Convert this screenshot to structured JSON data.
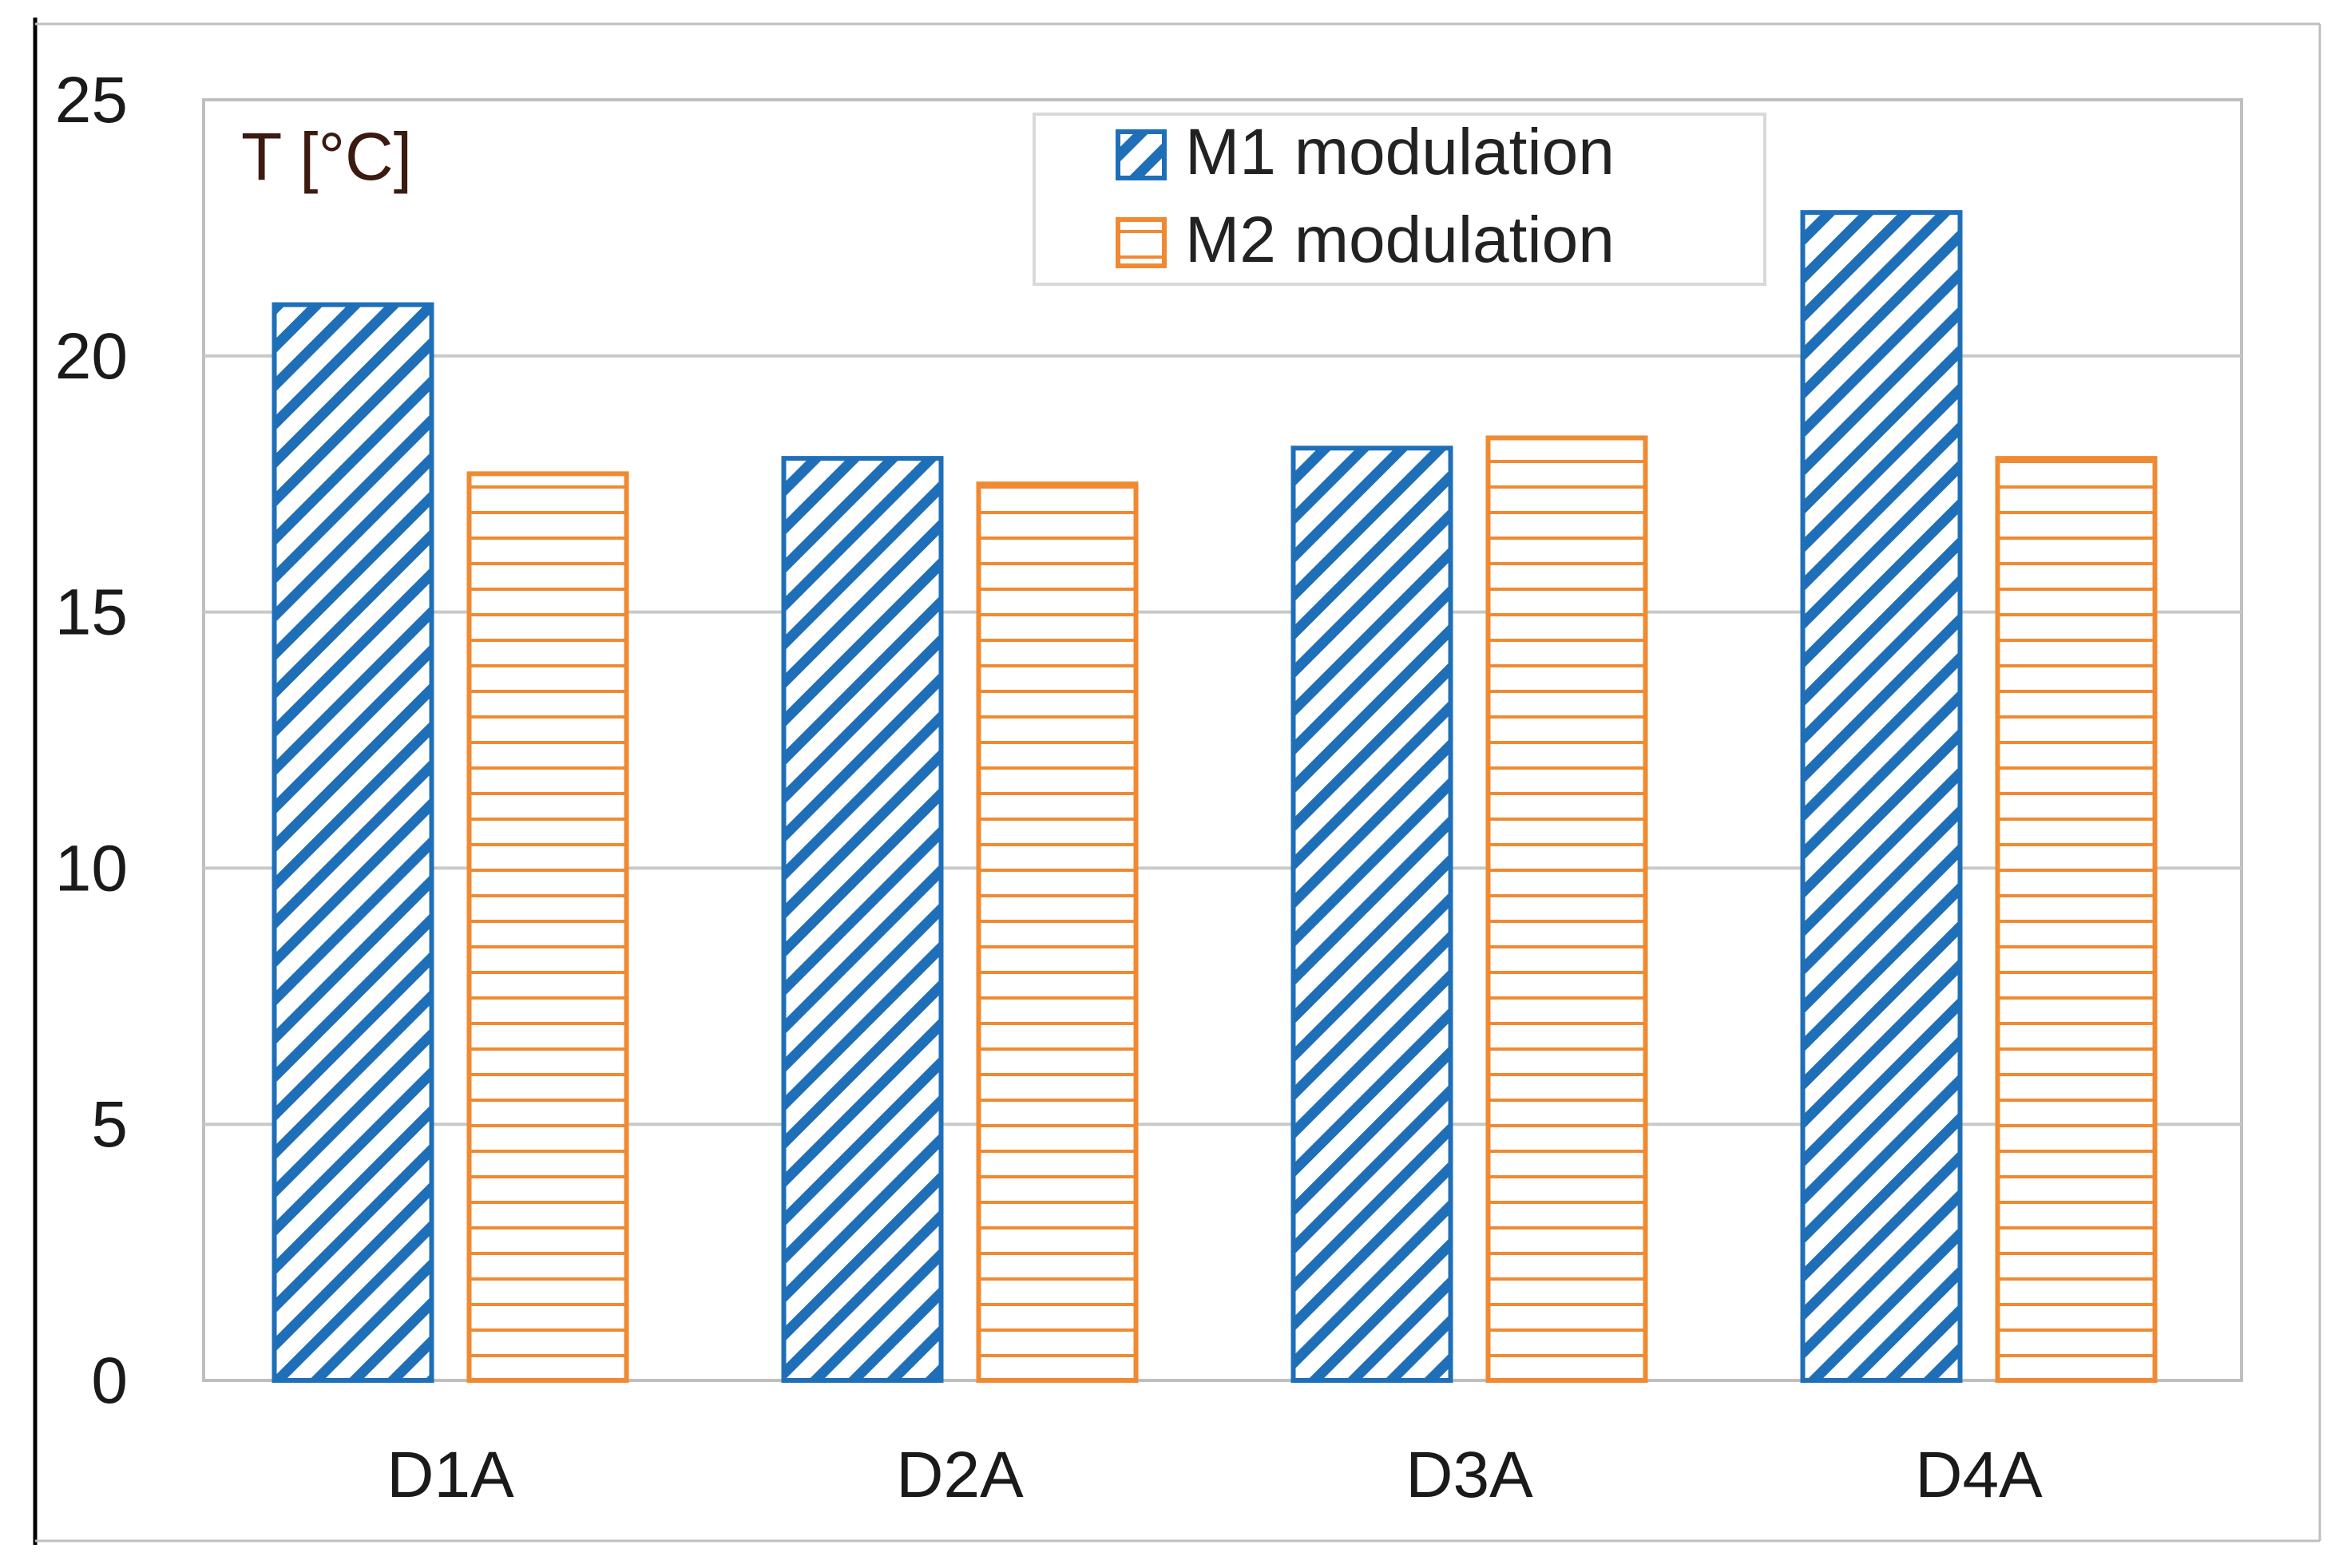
{
  "chart_data": {
    "type": "bar",
    "title": "",
    "ylabel": "T [°C]",
    "xlabel": "",
    "ylim": [
      0,
      25
    ],
    "yticks": [
      0,
      5,
      10,
      15,
      20,
      25
    ],
    "grid": true,
    "legend_position": "top-right",
    "categories": [
      "D1A",
      "D2A",
      "D3A",
      "D4A"
    ],
    "series": [
      {
        "name": "M1 modulation",
        "color": "#1f6fb8",
        "pattern": "diagonal-hatch",
        "values": [
          21.0,
          18.0,
          18.2,
          22.8
        ]
      },
      {
        "name": "M2 modulation",
        "color": "#f08a32",
        "pattern": "horizontal-hatch",
        "values": [
          17.7,
          17.5,
          18.4,
          18.0
        ]
      }
    ]
  }
}
